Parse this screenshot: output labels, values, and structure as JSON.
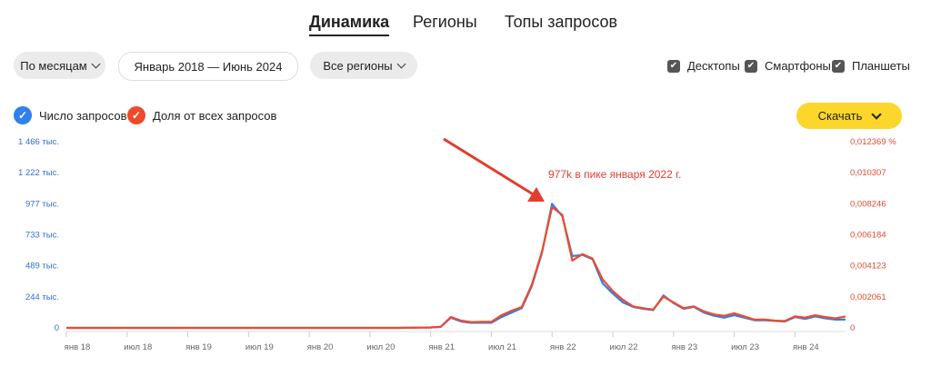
{
  "tabs": [
    {
      "label": "Динамика",
      "active": true
    },
    {
      "label": "Регионы"
    },
    {
      "label": "Топы запросов"
    }
  ],
  "controls": {
    "period": "По месяцам",
    "range": "Январь 2018 — Июнь 2024",
    "region": "Все регионы"
  },
  "devices": [
    {
      "label": "Десктопы",
      "checked": true
    },
    {
      "label": "Смартфоны",
      "checked": true
    },
    {
      "label": "Планшеты",
      "checked": true
    }
  ],
  "legend": [
    {
      "label": "Число запросов",
      "color": "#2f80ed"
    },
    {
      "label": "Доля от всех запросов",
      "color": "#f04a2c"
    }
  ],
  "download_label": "Скачать",
  "annotation": "977k в пике января 2022 г.",
  "chart_data": {
    "type": "line",
    "x_start": "янв 18",
    "x_count": 78,
    "x_step": "month",
    "x_ticks": [
      "янв 18",
      "июл 18",
      "янв 19",
      "июл 19",
      "янв 20",
      "июл 20",
      "янв 21",
      "июл 21",
      "янв 22",
      "июл 22",
      "янв 23",
      "июл 23",
      "янв 24"
    ],
    "y_left": {
      "label": "Число запросов (тыс.)",
      "range": [
        0,
        1466
      ],
      "ticks": [
        "0",
        "244 тыс.",
        "489 тыс.",
        "733 тыс.",
        "977 тыс.",
        "1 222 тыс.",
        "1 466 тыс."
      ]
    },
    "y_right": {
      "label": "Доля от всех запросов (%)",
      "range": [
        0,
        0.012369
      ],
      "ticks": [
        "0",
        "0,002061",
        "0,004123",
        "0,006184",
        "0,008246",
        "0,010307",
        "0,012369 %"
      ]
    },
    "series": [
      {
        "name": "Число запросов",
        "axis": "left",
        "unit": "тыс.",
        "color": "#2f80ed",
        "values": [
          0,
          0,
          0,
          0,
          0,
          0,
          0,
          0,
          0,
          0,
          0,
          0,
          0,
          0,
          0,
          0,
          0,
          0,
          0,
          0,
          0,
          0,
          0,
          0,
          0,
          0,
          0,
          0,
          0,
          0,
          0,
          0,
          0,
          0,
          1,
          2,
          3,
          8,
          80,
          50,
          40,
          40,
          40,
          85,
          120,
          155,
          330,
          590,
          977,
          880,
          565,
          575,
          540,
          350,
          270,
          200,
          165,
          150,
          140,
          255,
          195,
          150,
          165,
          120,
          95,
          80,
          100,
          80,
          60,
          60,
          55,
          50,
          85,
          70,
          90,
          75,
          65,
          65
        ]
      },
      {
        "name": "Доля от всех запросов",
        "axis": "right",
        "unit": "%",
        "color": "#f04a2c",
        "values": [
          0,
          0,
          0,
          0,
          0,
          0,
          0,
          0,
          0,
          0,
          0,
          0,
          0,
          0,
          0,
          0,
          0,
          0,
          0,
          0,
          0,
          0,
          0,
          0,
          0,
          0,
          0,
          0,
          0,
          0,
          0,
          0,
          0,
          0,
          1e-05,
          2e-05,
          3e-05,
          7e-05,
          0.00072,
          0.00048,
          0.00038,
          0.0004,
          0.0004,
          0.00084,
          0.00114,
          0.00139,
          0.00287,
          0.00506,
          0.00802,
          0.00751,
          0.00447,
          0.0049,
          0.0046,
          0.00321,
          0.00245,
          0.00186,
          0.00143,
          0.00131,
          0.00122,
          0.00207,
          0.00169,
          0.00131,
          0.00143,
          0.0011,
          0.00089,
          0.0008,
          0.00097,
          0.00076,
          0.00055,
          0.00055,
          0.00048,
          0.00045,
          0.00076,
          0.00068,
          0.00084,
          0.00072,
          0.00063,
          0.00076
        ]
      }
    ]
  }
}
